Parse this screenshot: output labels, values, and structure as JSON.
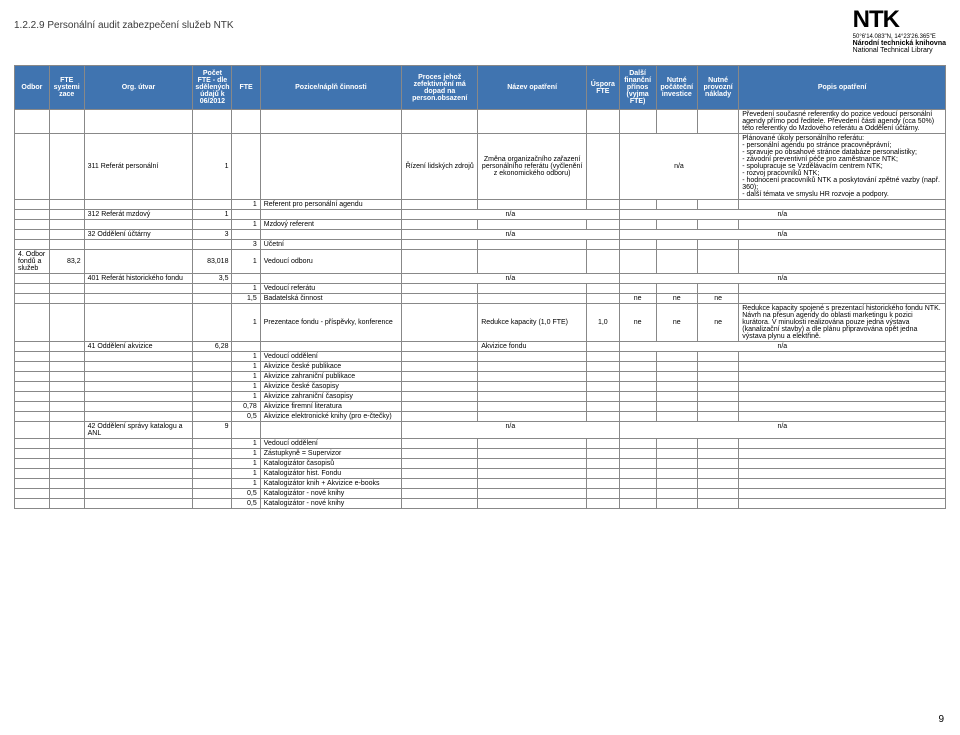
{
  "page": {
    "title": "1.2.2.9 Personální audit zabezpečení služeb NTK",
    "number": "9"
  },
  "logo": {
    "big": "NTK",
    "coords": "50°6'14.083\"N, 14°23'26.365\"E",
    "line1": "Národní technická knihovna",
    "line2": "National Technical Library"
  },
  "columns": {
    "odbor": "Odbor",
    "sys": "FTE systemi zace",
    "org": "Org. útvar",
    "pfte": "Počet FTE - dle sdělených údajů k 06/2012",
    "fte": "FTE",
    "poz": "Pozice/náplň činnosti",
    "proc": "Proces jehož zefektivnění má dopad na person.obsazení",
    "naz": "Název opatření",
    "usp": "Úspora FTE",
    "dal": "Další finanční přínos (vyjma FTE)",
    "nut1": "Nutné počáteční investice",
    "nut2": "Nutné provozní náklady",
    "pop": "Popis opatření"
  },
  "row_prev": {
    "pop": "Převedení současné referentky do pozice vedoucí personální agendy přímo pod ředitele. Převedení části agendy (cca 50%) této referentky do Mzdového referátu a Oddělení účtárny."
  },
  "row_311": {
    "org": "311 Referát personální",
    "pfte": "1",
    "proc": "Řízení lidských zdrojů",
    "naz": "Změna organizačního zařazení personálního referátu (vyčlenění z ekonomického odboru)",
    "na": "n/a",
    "pop": "Plánované úkoly personálního referátu:\n - personální agendu po stránce pracovněprávní;\n- spravuje po obsahové stránce databáze personalistiky;\n- závodní preventivní péče pro zaměstnance NTK;\n- spolupracuje se Vzdělávacím centrem NTK;\n- rozvoj pracovníků NTK;\n- hodnocení pracovníků NTK a poskytování zpětné vazby (např. 360);\n- další témata ve smyslu HR rozvoje a podpory."
  },
  "row_311b": {
    "fte": "1",
    "poz": "Referent pro personální agendu"
  },
  "row_312": {
    "org": "312 Referát mzdový",
    "pfte": "1",
    "na1": "n/a",
    "na2": "n/a"
  },
  "row_312b": {
    "fte": "1",
    "poz": "Mzdový referent"
  },
  "row_32": {
    "org": "32 Oddělení účtárny",
    "pfte": "3",
    "na1": "n/a",
    "na2": "n/a"
  },
  "row_32b": {
    "fte": "3",
    "poz": "Účetní"
  },
  "row_4": {
    "odbor": "4. Odbor fondů a služeb",
    "sys": "83,2",
    "pfte": "83,018",
    "fte": "1",
    "poz": "Vedoucí odboru"
  },
  "row_401": {
    "org": "401 Referát historického fondu",
    "pfte": "3,5",
    "na1": "n/a",
    "na2": "n/a"
  },
  "row_401b": {
    "fte": "1",
    "poz": "Vedoucí referátu"
  },
  "row_401c": {
    "fte": "1,5",
    "poz": "Badatelská činnost",
    "ne": "ne"
  },
  "row_401d": {
    "fte": "1",
    "poz": "Prezentace fondu - příspěvky, konference",
    "naz": "Redukce kapacity (1,0 FTE)",
    "usp": "1,0",
    "ne": "ne",
    "pop": "Redukce kapacity spojené s prezentací historického fondu NTK. Návrh na přesun agendy do oblasti marketingu k pozici kurátora. V minulosti realizována pouze jedna výstava (kanalizační stavby) a dle plánu připravována opět jedna výstava plynu a elektřině."
  },
  "row_41": {
    "org": "41 Oddělení akvizice",
    "pfte": "6,28",
    "naz": "Akvizice fondu",
    "na": "n/a"
  },
  "row_41_1": {
    "fte": "1",
    "poz": "Vedoucí oddělení"
  },
  "row_41_2": {
    "fte": "1",
    "poz": "Akvizice české publikace"
  },
  "row_41_3": {
    "fte": "1",
    "poz": "Akvizice zahraniční publikace"
  },
  "row_41_4": {
    "fte": "1",
    "poz": "Akvizice české časopisy"
  },
  "row_41_5": {
    "fte": "1",
    "poz": "Akvizice zahraniční časopisy"
  },
  "row_41_6": {
    "fte": "0,78",
    "poz": "Akvizice firemní literatura"
  },
  "row_41_7": {
    "fte": "0,5",
    "poz": "Akvizice elektronické knihy (pro e-čtečky)"
  },
  "row_42": {
    "org": "42 Oddělení správy katalogu a ANL",
    "pfte": "9",
    "na1": "n/a",
    "na2": "n/a"
  },
  "row_42_1": {
    "fte": "1",
    "poz": "Vedoucí oddělení"
  },
  "row_42_2": {
    "fte": "1",
    "poz": "Zástupkyně = Supervizor"
  },
  "row_42_3": {
    "fte": "1",
    "poz": "Katalogizátor časopisů"
  },
  "row_42_4": {
    "fte": "1",
    "poz": "Katalogizátor hist. Fondu"
  },
  "row_42_5": {
    "fte": "1",
    "poz": "Katalogizátor knih + Akvizice e-books"
  },
  "row_42_6": {
    "fte": "0,5",
    "poz": "Katalogizátor - nové knihy"
  },
  "row_42_7": {
    "fte": "0,5",
    "poz": "Katalogizátor - nové knihy"
  }
}
